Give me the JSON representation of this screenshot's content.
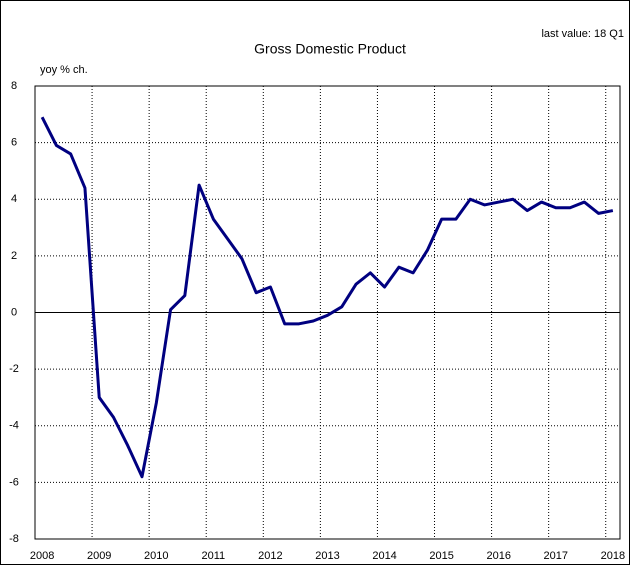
{
  "chart_data": {
    "type": "line",
    "title": "Gross Domestic Product",
    "y_label": "yoy % ch.",
    "annotation": "last value: 18 Q1",
    "categories": [
      "2008",
      null,
      null,
      null,
      "2009",
      null,
      null,
      null,
      "2010",
      null,
      null,
      null,
      "2011",
      null,
      null,
      null,
      "2012",
      null,
      null,
      null,
      "2013",
      null,
      null,
      null,
      "2014",
      null,
      null,
      null,
      "2015",
      null,
      null,
      null,
      "2016",
      null,
      null,
      null,
      "2017",
      null,
      null,
      null,
      "2018"
    ],
    "series": [
      {
        "name": "GDP",
        "color": "#000080",
        "values": [
          6.9,
          5.9,
          5.6,
          4.4,
          -3.0,
          -3.7,
          -4.7,
          -5.8,
          -3.2,
          0.1,
          0.6,
          4.5,
          3.3,
          2.6,
          1.9,
          0.7,
          0.9,
          -0.4,
          -0.4,
          -0.3,
          -0.1,
          0.2,
          1.0,
          1.4,
          0.9,
          1.6,
          1.4,
          2.2,
          3.3,
          3.3,
          4.0,
          3.8,
          3.9,
          4.0,
          3.6,
          3.9,
          3.7,
          3.7,
          3.9,
          3.5,
          3.6
        ]
      }
    ],
    "ylim": [
      -8,
      8
    ],
    "yticks": [
      -8,
      -6,
      -4,
      -2,
      0,
      2,
      4,
      6,
      8
    ],
    "grid": true
  }
}
